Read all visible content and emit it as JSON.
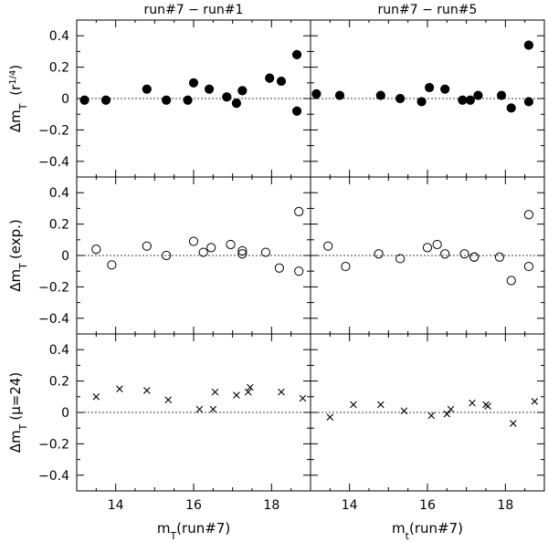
{
  "chart_data": {
    "type": "scatter",
    "column_titles": [
      "run#7 − run#1",
      "run#7 − run#5"
    ],
    "x_axis_labels": [
      "m_T(run#7)",
      "m_t(run#7)"
    ],
    "row_ylabels": [
      "Δm_T (r^1/4)",
      "Δm_T (exp.)",
      "Δm_T (μ=24)"
    ],
    "xlim": [
      13,
      19
    ],
    "ylim": [
      -0.5,
      0.5
    ],
    "x_ticks": [
      14,
      16,
      18
    ],
    "y_ticks": [
      -0.4,
      -0.2,
      0,
      0.2,
      0.4
    ],
    "zero_line": "dotted",
    "panels": [
      {
        "row": 0,
        "col": 0,
        "marker": "filled-circle",
        "points": [
          {
            "x": 13.2,
            "y": -0.01
          },
          {
            "x": 13.75,
            "y": -0.01
          },
          {
            "x": 14.8,
            "y": 0.06
          },
          {
            "x": 15.3,
            "y": -0.01
          },
          {
            "x": 15.85,
            "y": -0.01
          },
          {
            "x": 16.0,
            "y": 0.1
          },
          {
            "x": 16.4,
            "y": 0.06
          },
          {
            "x": 16.85,
            "y": 0.01
          },
          {
            "x": 17.1,
            "y": -0.03
          },
          {
            "x": 17.25,
            "y": 0.05
          },
          {
            "x": 17.95,
            "y": 0.13
          },
          {
            "x": 18.25,
            "y": 0.11
          },
          {
            "x": 18.65,
            "y": 0.28
          },
          {
            "x": 18.65,
            "y": -0.08
          }
        ]
      },
      {
        "row": 0,
        "col": 1,
        "marker": "filled-circle",
        "points": [
          {
            "x": 13.15,
            "y": 0.03
          },
          {
            "x": 13.75,
            "y": 0.02
          },
          {
            "x": 14.8,
            "y": 0.02
          },
          {
            "x": 15.3,
            "y": 0.0
          },
          {
            "x": 15.85,
            "y": -0.02
          },
          {
            "x": 16.05,
            "y": 0.07
          },
          {
            "x": 16.45,
            "y": 0.06
          },
          {
            "x": 16.9,
            "y": -0.01
          },
          {
            "x": 17.1,
            "y": -0.01
          },
          {
            "x": 17.3,
            "y": 0.02
          },
          {
            "x": 17.9,
            "y": 0.02
          },
          {
            "x": 18.15,
            "y": -0.06
          },
          {
            "x": 18.6,
            "y": 0.34
          },
          {
            "x": 18.6,
            "y": -0.02
          }
        ]
      },
      {
        "row": 1,
        "col": 0,
        "marker": "open-circle",
        "points": [
          {
            "x": 13.5,
            "y": 0.04
          },
          {
            "x": 13.9,
            "y": -0.06
          },
          {
            "x": 14.8,
            "y": 0.06
          },
          {
            "x": 15.3,
            "y": 0.0
          },
          {
            "x": 16.0,
            "y": 0.09
          },
          {
            "x": 16.25,
            "y": 0.02
          },
          {
            "x": 16.45,
            "y": 0.05
          },
          {
            "x": 16.95,
            "y": 0.07
          },
          {
            "x": 17.25,
            "y": 0.01
          },
          {
            "x": 17.25,
            "y": 0.03
          },
          {
            "x": 17.85,
            "y": 0.02
          },
          {
            "x": 18.2,
            "y": -0.08
          },
          {
            "x": 18.7,
            "y": 0.28
          },
          {
            "x": 18.7,
            "y": -0.1
          }
        ]
      },
      {
        "row": 1,
        "col": 1,
        "marker": "open-circle",
        "points": [
          {
            "x": 13.45,
            "y": 0.06
          },
          {
            "x": 13.9,
            "y": -0.07
          },
          {
            "x": 14.75,
            "y": 0.01
          },
          {
            "x": 15.3,
            "y": -0.02
          },
          {
            "x": 16.0,
            "y": 0.05
          },
          {
            "x": 16.25,
            "y": 0.07
          },
          {
            "x": 16.45,
            "y": 0.01
          },
          {
            "x": 16.95,
            "y": 0.01
          },
          {
            "x": 17.2,
            "y": -0.01
          },
          {
            "x": 17.2,
            "y": -0.01
          },
          {
            "x": 17.85,
            "y": -0.01
          },
          {
            "x": 18.15,
            "y": -0.16
          },
          {
            "x": 18.6,
            "y": 0.26
          },
          {
            "x": 18.6,
            "y": -0.07
          }
        ]
      },
      {
        "row": 2,
        "col": 0,
        "marker": "cross",
        "points": [
          {
            "x": 13.5,
            "y": 0.1
          },
          {
            "x": 14.1,
            "y": 0.15
          },
          {
            "x": 14.8,
            "y": 0.14
          },
          {
            "x": 15.35,
            "y": 0.08
          },
          {
            "x": 16.15,
            "y": 0.02
          },
          {
            "x": 16.5,
            "y": 0.02
          },
          {
            "x": 16.55,
            "y": 0.13
          },
          {
            "x": 17.1,
            "y": 0.11
          },
          {
            "x": 17.4,
            "y": 0.13
          },
          {
            "x": 17.45,
            "y": 0.16
          },
          {
            "x": 18.25,
            "y": 0.13
          },
          {
            "x": 18.8,
            "y": 0.09
          }
        ]
      },
      {
        "row": 2,
        "col": 1,
        "marker": "cross",
        "points": [
          {
            "x": 13.5,
            "y": -0.03
          },
          {
            "x": 14.1,
            "y": 0.05
          },
          {
            "x": 14.8,
            "y": 0.05
          },
          {
            "x": 15.4,
            "y": 0.01
          },
          {
            "x": 16.1,
            "y": -0.02
          },
          {
            "x": 16.5,
            "y": -0.01
          },
          {
            "x": 16.6,
            "y": 0.02
          },
          {
            "x": 17.15,
            "y": 0.06
          },
          {
            "x": 17.5,
            "y": 0.05
          },
          {
            "x": 17.55,
            "y": 0.04
          },
          {
            "x": 18.2,
            "y": -0.07
          },
          {
            "x": 18.75,
            "y": 0.07
          }
        ]
      }
    ]
  }
}
